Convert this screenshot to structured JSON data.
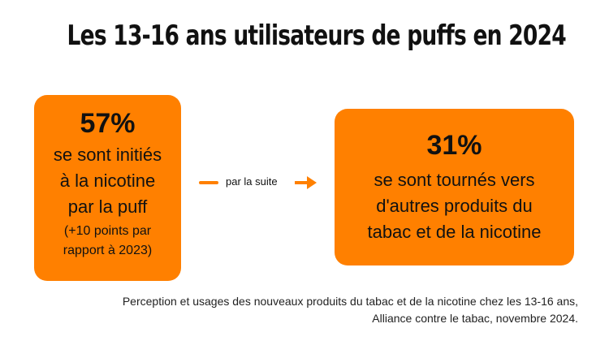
{
  "title": "Les 13-16 ans utilisateurs de puffs en 2024",
  "left_card": {
    "percent": "57%",
    "lines": [
      "se sont initiés",
      "à la nicotine",
      "par la puff"
    ],
    "note_lines": [
      "(+10 points par",
      "rapport à 2023)"
    ]
  },
  "connector": {
    "label": "par la suite"
  },
  "right_card": {
    "percent": "31%",
    "lines": [
      "se sont tournés vers",
      "d'autres produits du",
      "tabac et de la nicotine"
    ]
  },
  "source": {
    "lines": [
      "Perception et usages des nouveaux produits du tabac et de la nicotine chez les 13-16 ans,",
      "Alliance contre le tabac, novembre 2024."
    ]
  },
  "colors": {
    "accent": "#FF8000",
    "text": "#111111",
    "background": "#FFFFFF"
  }
}
